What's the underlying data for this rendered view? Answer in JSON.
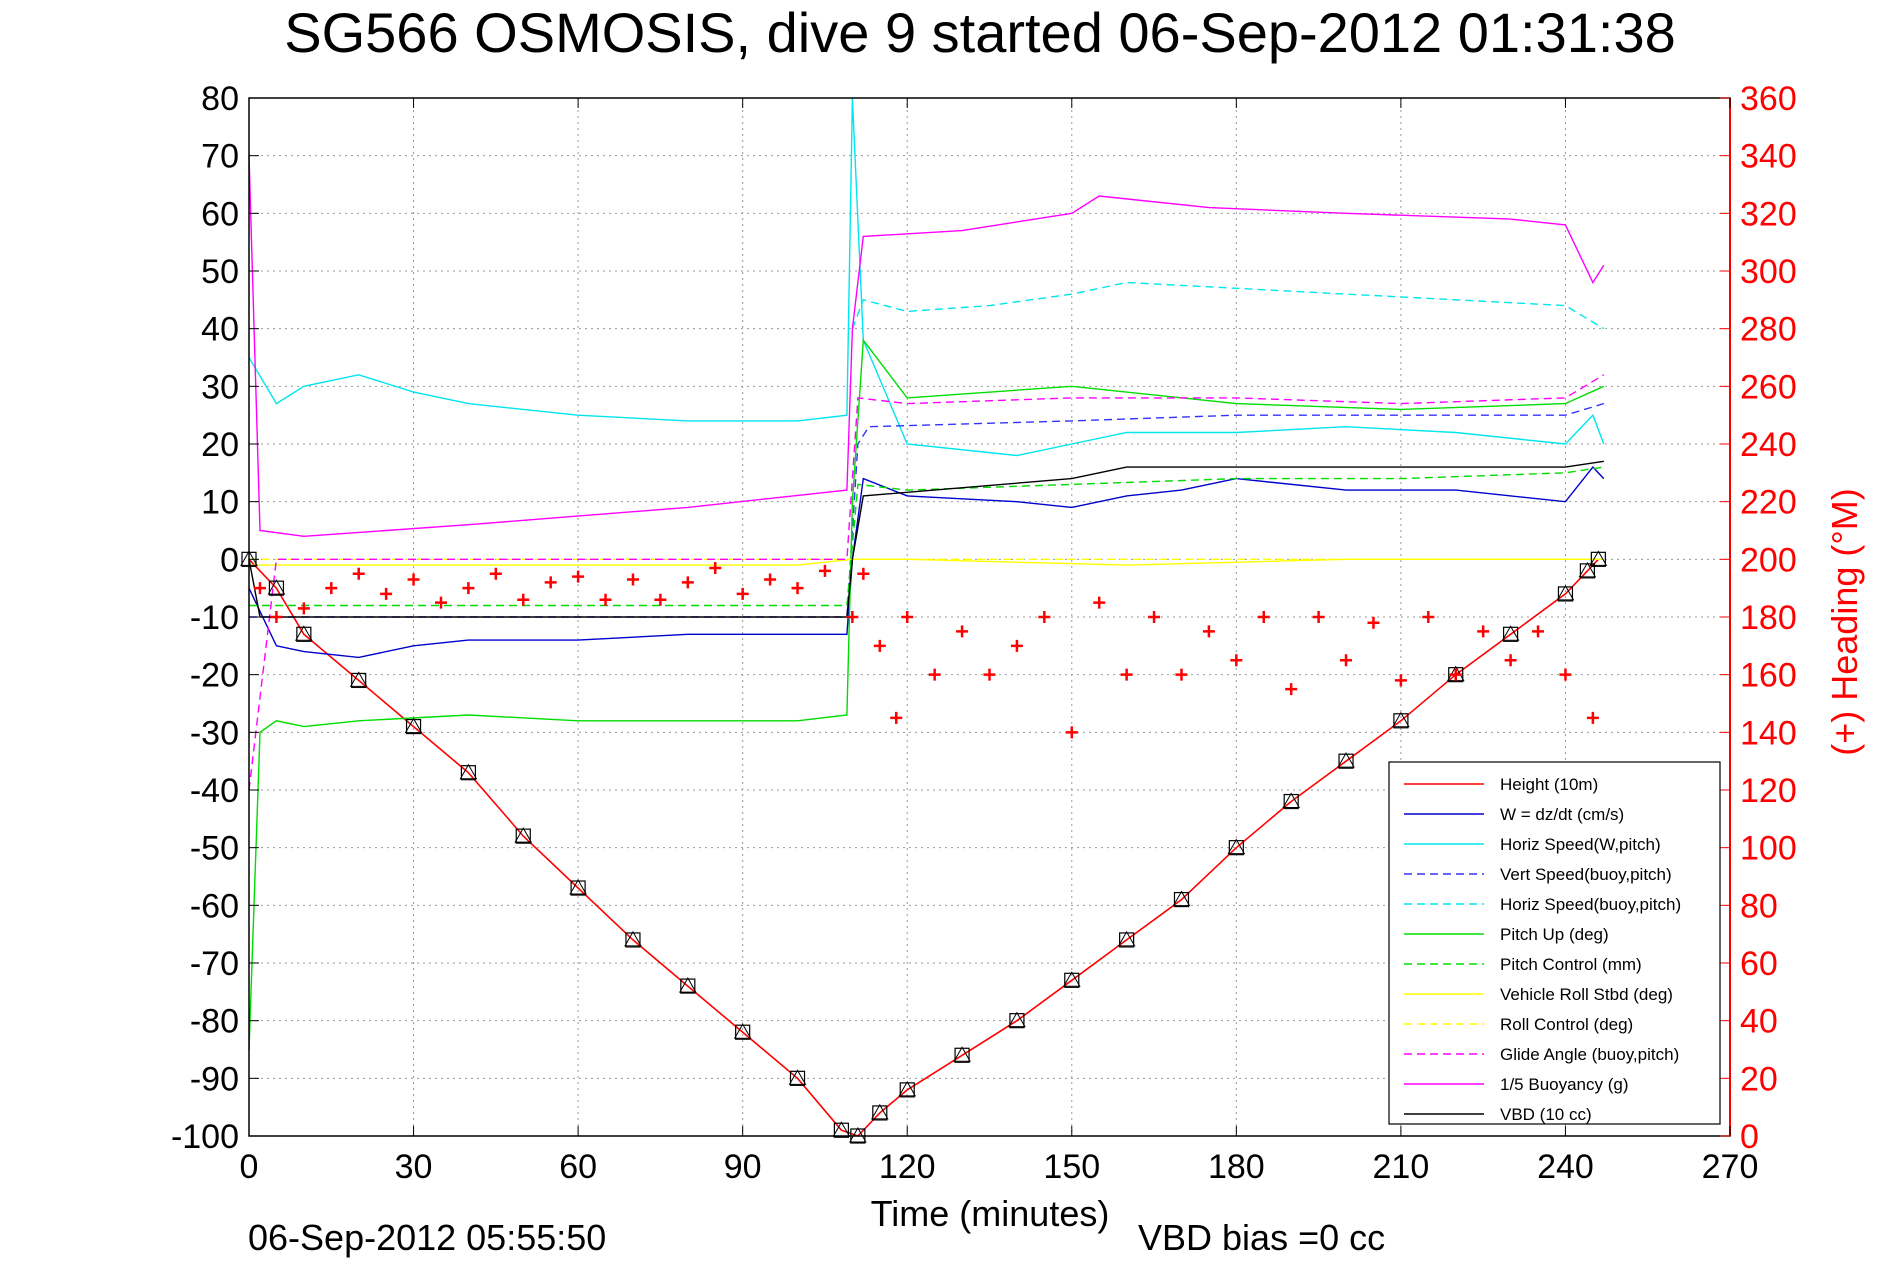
{
  "chart_data": {
    "type": "line",
    "title": "SG566 OSMOSIS, dive 9 started 06-Sep-2012 01:31:38",
    "xlabel": "Time (minutes)",
    "ylabel_right": "(+) Heading (°M)",
    "xlim": [
      0,
      270
    ],
    "ylim": [
      -100,
      80
    ],
    "ylim_right": [
      0,
      360
    ],
    "x_ticks": [
      0,
      30,
      60,
      90,
      120,
      150,
      180,
      210,
      240,
      270
    ],
    "y_ticks": [
      80,
      70,
      60,
      50,
      40,
      30,
      20,
      10,
      0,
      -10,
      -20,
      -30,
      -40,
      -50,
      -60,
      -70,
      -80,
      -90,
      -100
    ],
    "y_ticks_right": [
      360,
      340,
      320,
      300,
      280,
      260,
      240,
      220,
      200,
      180,
      160,
      140,
      120,
      100,
      80,
      60,
      40,
      20,
      0
    ],
    "grid": true,
    "legend_position": "lower-right",
    "footer_left": "06-Sep-2012 05:55:50",
    "footer_right": "VBD bias =0 cc",
    "colors": {
      "height": "#ff0000",
      "w": "#0000cc",
      "horiz_speed": "#00e5ee",
      "vert_speed_model": "#3333ff",
      "horiz_speed_model": "#00e5ee",
      "pitch_up": "#00dd00",
      "pitch_control": "#00dd00",
      "roll": "#ffff00",
      "roll_control": "#ffff00",
      "glide_angle": "#ff00ff",
      "buoyancy": "#ff00ff",
      "vbd": "#000000",
      "heading": "#ff0000"
    },
    "series": [
      {
        "name": "Height (10m)",
        "key": "height",
        "style": "solid",
        "x": [
          0,
          5,
          10,
          20,
          30,
          40,
          50,
          60,
          70,
          80,
          90,
          100,
          108,
          111,
          115,
          120,
          130,
          140,
          150,
          160,
          170,
          180,
          190,
          200,
          210,
          220,
          230,
          240,
          244,
          246
        ],
        "values": [
          0,
          -5,
          -13,
          -21,
          -29,
          -37,
          -48,
          -57,
          -66,
          -74,
          -82,
          -90,
          -99,
          -100,
          -96,
          -92,
          -86,
          -80,
          -73,
          -66,
          -59,
          -50,
          -42,
          -35,
          -28,
          -20,
          -13,
          -6,
          -2,
          0
        ]
      },
      {
        "name": "W = dz/dt (cm/s)",
        "key": "w",
        "style": "solid",
        "x": [
          0,
          5,
          10,
          20,
          30,
          40,
          60,
          80,
          100,
          109,
          110,
          112,
          120,
          140,
          150,
          160,
          170,
          180,
          200,
          220,
          240,
          245,
          247
        ],
        "values": [
          -5,
          -15,
          -16,
          -17,
          -15,
          -14,
          -14,
          -13,
          -13,
          -13,
          0,
          14,
          11,
          10,
          9,
          11,
          12,
          14,
          12,
          12,
          10,
          16,
          14
        ]
      },
      {
        "name": "Horiz Speed(W,pitch)",
        "key": "horiz_speed",
        "style": "solid",
        "x": [
          0,
          5,
          10,
          20,
          30,
          40,
          60,
          80,
          100,
          109,
          110,
          112,
          120,
          140,
          150,
          160,
          180,
          200,
          220,
          240,
          245,
          247
        ],
        "values": [
          35,
          27,
          30,
          32,
          29,
          27,
          25,
          24,
          24,
          25,
          80,
          38,
          20,
          18,
          20,
          22,
          22,
          23,
          22,
          20,
          25,
          20
        ]
      },
      {
        "name": "Vert Speed(buoy,pitch)",
        "key": "vert_speed_model",
        "style": "dashed",
        "x": [
          0,
          5,
          20,
          60,
          100,
          109,
          111,
          113,
          150,
          180,
          210,
          240,
          247
        ],
        "values": [
          -10,
          -10,
          -10,
          -10,
          -10,
          -10,
          20,
          23,
          24,
          25,
          25,
          25,
          27
        ]
      },
      {
        "name": "Horiz Speed(buoy,pitch)",
        "key": "horiz_speed_model",
        "style": "dashed",
        "x": [
          110,
          112,
          120,
          135,
          150,
          160,
          180,
          200,
          220,
          240,
          247
        ],
        "values": [
          40,
          45,
          43,
          44,
          46,
          48,
          47,
          46,
          45,
          44,
          40
        ]
      },
      {
        "name": "Pitch Up (deg)",
        "key": "pitch_up",
        "style": "solid",
        "x": [
          0,
          2,
          5,
          10,
          20,
          40,
          60,
          80,
          100,
          109,
          110,
          112,
          120,
          150,
          180,
          210,
          240,
          247
        ],
        "values": [
          -85,
          -30,
          -28,
          -29,
          -28,
          -27,
          -28,
          -28,
          -28,
          -27,
          10,
          38,
          28,
          30,
          27,
          26,
          27,
          30
        ]
      },
      {
        "name": "Pitch Control (mm)",
        "key": "pitch_control",
        "style": "dashed",
        "x": [
          0,
          5,
          20,
          60,
          100,
          109,
          111,
          120,
          150,
          180,
          210,
          240,
          247
        ],
        "values": [
          -8,
          -8,
          -8,
          -8,
          -8,
          -8,
          13,
          12,
          13,
          14,
          14,
          15,
          16
        ]
      },
      {
        "name": "Vehicle Roll Stbd (deg)",
        "key": "roll",
        "style": "solid",
        "x": [
          0,
          10,
          50,
          100,
          110,
          120,
          160,
          200,
          247
        ],
        "values": [
          -1,
          -1,
          -1,
          -1,
          0,
          0,
          -1,
          0,
          0
        ]
      },
      {
        "name": "Roll Control (deg)",
        "key": "roll_control",
        "style": "dashed",
        "x": [
          0,
          60,
          110,
          180,
          247
        ],
        "values": [
          0,
          0,
          0,
          0,
          0
        ]
      },
      {
        "name": "Glide Angle (buoy,pitch)",
        "key": "glide_angle",
        "style": "dashed",
        "x": [
          0,
          5,
          20,
          60,
          100,
          109,
          111,
          120,
          150,
          180,
          210,
          240,
          247
        ],
        "values": [
          -40,
          0,
          0,
          0,
          0,
          0,
          28,
          27,
          28,
          28,
          27,
          28,
          32
        ]
      },
      {
        "name": "1/5 Buoyancy (g)",
        "key": "buoyancy",
        "style": "solid",
        "x": [
          0,
          2,
          10,
          40,
          80,
          109,
          110,
          112,
          130,
          150,
          155,
          175,
          200,
          230,
          240,
          245,
          247
        ],
        "values": [
          70,
          5,
          4,
          6,
          9,
          12,
          40,
          56,
          57,
          60,
          63,
          61,
          60,
          59,
          58,
          48,
          51
        ]
      },
      {
        "name": "VBD (10 cc)",
        "key": "vbd",
        "style": "solid",
        "x": [
          0,
          2,
          30,
          60,
          100,
          109,
          110,
          112,
          150,
          160,
          200,
          240,
          247
        ],
        "values": [
          0,
          -10,
          -10,
          -10,
          -10,
          -10,
          0,
          11,
          14,
          16,
          16,
          16,
          17
        ]
      }
    ],
    "heading": {
      "name": "(+) Heading (°M)",
      "axis": "right",
      "marker": "+",
      "x": [
        2,
        5,
        10,
        15,
        20,
        25,
        30,
        35,
        40,
        45,
        50,
        55,
        60,
        65,
        70,
        75,
        80,
        85,
        90,
        95,
        100,
        105,
        110,
        112,
        115,
        118,
        120,
        125,
        130,
        135,
        140,
        145,
        150,
        155,
        160,
        165,
        170,
        175,
        180,
        185,
        190,
        195,
        200,
        205,
        210,
        215,
        220,
        225,
        230,
        235,
        240,
        245
      ],
      "values": [
        190,
        180,
        183,
        190,
        195,
        188,
        193,
        185,
        190,
        195,
        186,
        192,
        194,
        186,
        193,
        186,
        192,
        197,
        188,
        193,
        190,
        196,
        180,
        195,
        170,
        145,
        180,
        160,
        175,
        160,
        170,
        180,
        140,
        185,
        160,
        180,
        160,
        175,
        165,
        180,
        155,
        180,
        165,
        178,
        158,
        180,
        160,
        175,
        165,
        175,
        160,
        145
      ]
    }
  }
}
